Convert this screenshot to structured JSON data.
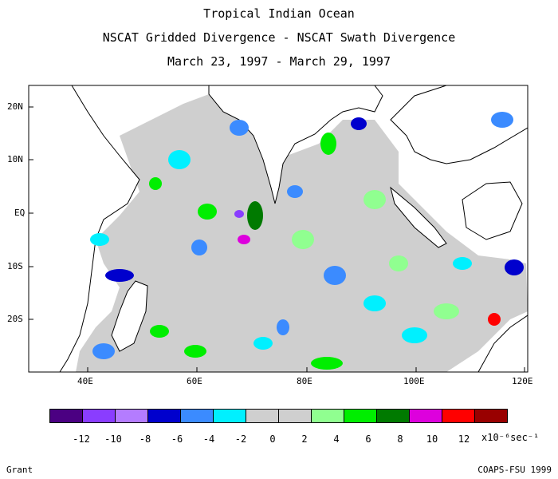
{
  "title": {
    "line1": "Tropical Indian Ocean",
    "line2": "NSCAT Gridded Divergence - NSCAT Swath Divergence",
    "line3": "March 23, 1997 - March 29, 1997"
  },
  "map": {
    "lat_labels": [
      "20N",
      "10N",
      "EQ",
      "10S",
      "20S"
    ],
    "lon_labels": [
      "40E",
      "60E",
      "80E",
      "100E",
      "120E"
    ],
    "land_color": "#ffffff",
    "coast_color": "#000000"
  },
  "colorbar": {
    "colors": [
      "#4b0082",
      "#8a3dff",
      "#b47cff",
      "#0000cd",
      "#3b8bff",
      "#00f0ff",
      "#cfcfcf",
      "#cfcfcf",
      "#90ff90",
      "#00ee00",
      "#007a00",
      "#dd00dd",
      "#ff0000",
      "#990000"
    ],
    "tick_labels": [
      "-12",
      "-10",
      "-8",
      "-6",
      "-4",
      "-2",
      "0",
      "2",
      "4",
      "6",
      "8",
      "10",
      "12"
    ],
    "units": "x10⁻⁶sec⁻¹"
  },
  "credits": {
    "left": "Grant",
    "right": "COAPS-FSU 1999"
  }
}
